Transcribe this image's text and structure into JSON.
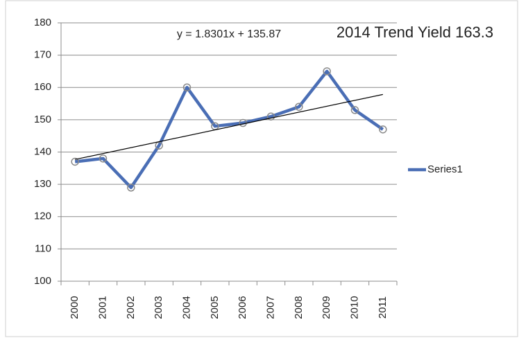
{
  "chart_data": {
    "type": "line",
    "categories": [
      "2000",
      "2001",
      "2002",
      "2003",
      "2004",
      "2005",
      "2006",
      "2007",
      "2008",
      "2009",
      "2010",
      "2011"
    ],
    "series": [
      {
        "name": "Series1",
        "color": "#4a6eb5",
        "values": [
          137,
          138,
          129,
          142,
          160,
          148,
          149,
          151,
          154,
          165,
          153,
          147
        ]
      }
    ],
    "ylim": [
      100,
      180
    ],
    "yticks": [
      100,
      110,
      120,
      130,
      140,
      150,
      160,
      170,
      180
    ],
    "grid": true,
    "legend": "right",
    "trendline": {
      "label": "y = 1.8301x + 135.87",
      "slope": 1.8301,
      "intercept": 135.87,
      "color": "#000000"
    },
    "annotation": "2014 Trend Yield 163.3"
  }
}
